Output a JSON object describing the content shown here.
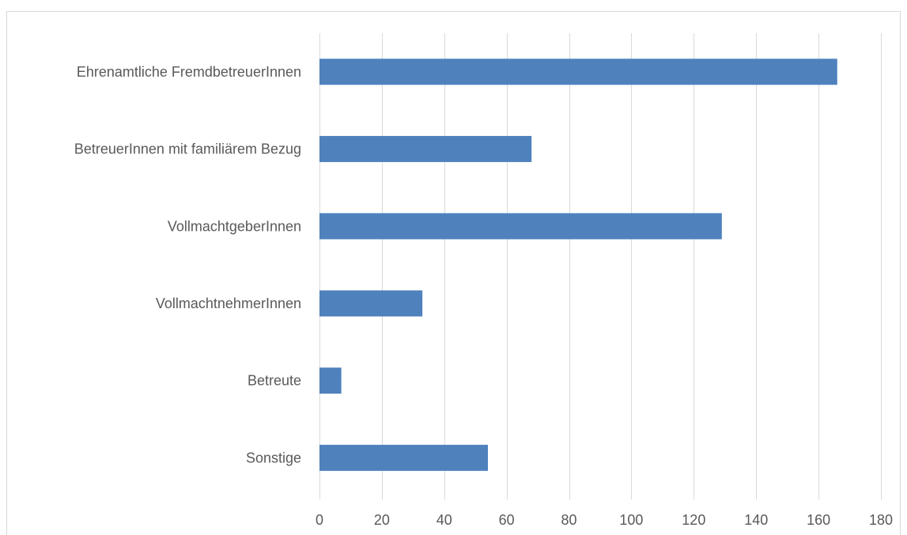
{
  "chart_data": {
    "type": "bar",
    "orientation": "horizontal",
    "categories": [
      "Ehrenamtliche FremdbetreuerInnen",
      "BetreuerInnen mit familiärem Bezug",
      "VollmachtgeberInnen",
      "VollmachtnehmerInnen",
      "Betreute",
      "Sonstige"
    ],
    "values": [
      166,
      68,
      129,
      33,
      7,
      54
    ],
    "xlim": [
      0,
      180
    ],
    "xticks": [
      0,
      20,
      40,
      60,
      80,
      100,
      120,
      140,
      160,
      180
    ],
    "grid": true,
    "bar_color": "#4f81bd"
  }
}
